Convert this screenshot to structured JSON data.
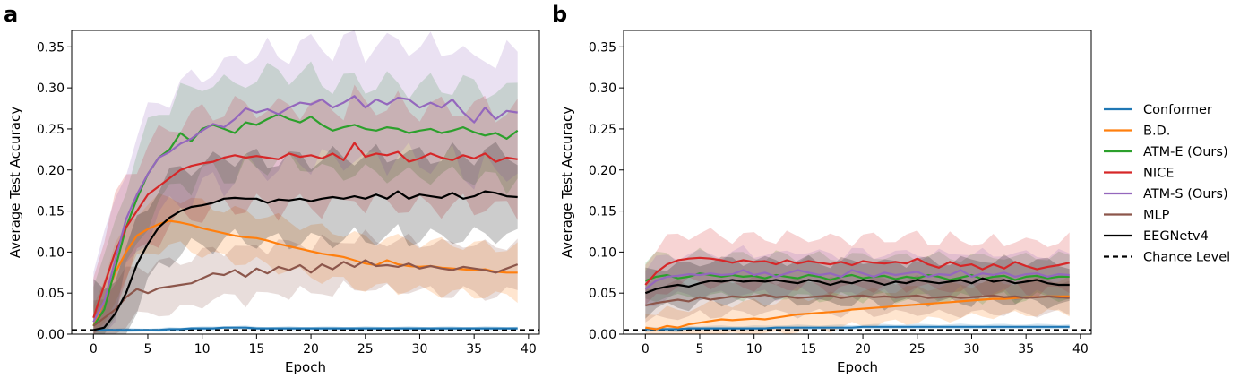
{
  "colors": {
    "Conformer": "#1f77b4",
    "B.D.": "#ff7f0e",
    "ATM-E (Ours)": "#2ca02c",
    "NICE": "#d62728",
    "ATM-S (Ours)": "#9467bd",
    "MLP": "#8c564b",
    "EEGNetv4": "#000000",
    "Chance Level": "#000000"
  },
  "legend": {
    "entries": [
      {
        "label": "Conformer",
        "style": "solid"
      },
      {
        "label": "B.D.",
        "style": "solid"
      },
      {
        "label": "ATM-E (Ours)",
        "style": "solid"
      },
      {
        "label": "NICE",
        "style": "solid"
      },
      {
        "label": "ATM-S (Ours)",
        "style": "solid"
      },
      {
        "label": "MLP",
        "style": "solid"
      },
      {
        "label": "EEGNetv4",
        "style": "solid"
      },
      {
        "label": "Chance Level",
        "style": "dashed"
      }
    ],
    "placement": "right"
  },
  "chart_data": [
    {
      "panel_label": "a",
      "type": "line",
      "xlabel": "Epoch",
      "ylabel": "Average Test Accuracy",
      "xlim": [
        -2,
        41
      ],
      "ylim": [
        0.0,
        0.37
      ],
      "xticks": [
        0,
        5,
        10,
        15,
        20,
        25,
        30,
        35,
        40
      ],
      "yticks": [
        0.0,
        0.05,
        0.1,
        0.15,
        0.2,
        0.25,
        0.3,
        0.35
      ],
      "ytick_labels": [
        "0.00",
        "0.05",
        "0.10",
        "0.15",
        "0.20",
        "0.25",
        "0.30",
        "0.35"
      ],
      "chance_level": 0.005,
      "x_start": 0,
      "series": [
        {
          "name": "Conformer",
          "band": 0.002,
          "values": [
            0.005,
            0.005,
            0.005,
            0.005,
            0.005,
            0.005,
            0.005,
            0.006,
            0.006,
            0.007,
            0.007,
            0.007,
            0.008,
            0.008,
            0.008,
            0.007,
            0.007,
            0.007,
            0.007,
            0.007,
            0.007,
            0.007,
            0.007,
            0.007,
            0.007,
            0.007,
            0.007,
            0.007,
            0.007,
            0.007,
            0.007,
            0.007,
            0.007,
            0.007,
            0.007,
            0.007,
            0.007,
            0.007,
            0.007,
            0.007
          ]
        },
        {
          "name": "B.D.",
          "band": 0.03,
          "values": [
            0.01,
            0.04,
            0.075,
            0.1,
            0.12,
            0.128,
            0.134,
            0.138,
            0.136,
            0.133,
            0.129,
            0.126,
            0.123,
            0.12,
            0.118,
            0.117,
            0.114,
            0.11,
            0.107,
            0.104,
            0.101,
            0.098,
            0.096,
            0.094,
            0.09,
            0.086,
            0.084,
            0.09,
            0.085,
            0.083,
            0.082,
            0.083,
            0.081,
            0.08,
            0.079,
            0.078,
            0.079,
            0.076,
            0.075,
            0.075
          ]
        },
        {
          "name": "ATM-E (Ours)",
          "band": 0.055,
          "values": [
            0.01,
            0.03,
            0.08,
            0.13,
            0.165,
            0.195,
            0.215,
            0.225,
            0.245,
            0.235,
            0.25,
            0.255,
            0.25,
            0.245,
            0.258,
            0.255,
            0.262,
            0.268,
            0.262,
            0.258,
            0.265,
            0.255,
            0.248,
            0.252,
            0.255,
            0.25,
            0.248,
            0.252,
            0.25,
            0.245,
            0.248,
            0.25,
            0.245,
            0.248,
            0.252,
            0.246,
            0.242,
            0.245,
            0.238,
            0.248
          ]
        },
        {
          "name": "NICE",
          "band": 0.06,
          "values": [
            0.02,
            0.06,
            0.1,
            0.13,
            0.15,
            0.17,
            0.18,
            0.19,
            0.2,
            0.205,
            0.208,
            0.21,
            0.215,
            0.218,
            0.215,
            0.217,
            0.215,
            0.213,
            0.22,
            0.216,
            0.218,
            0.214,
            0.22,
            0.212,
            0.233,
            0.216,
            0.22,
            0.218,
            0.222,
            0.21,
            0.214,
            0.22,
            0.215,
            0.212,
            0.218,
            0.214,
            0.22,
            0.21,
            0.215,
            0.213
          ]
        },
        {
          "name": "ATM-S (Ours)",
          "band": 0.07,
          "values": [
            0.015,
            0.04,
            0.09,
            0.14,
            0.17,
            0.195,
            0.215,
            0.222,
            0.232,
            0.238,
            0.248,
            0.256,
            0.252,
            0.262,
            0.275,
            0.27,
            0.274,
            0.268,
            0.276,
            0.282,
            0.28,
            0.286,
            0.276,
            0.282,
            0.29,
            0.276,
            0.286,
            0.28,
            0.288,
            0.286,
            0.276,
            0.282,
            0.276,
            0.286,
            0.27,
            0.258,
            0.276,
            0.262,
            0.272,
            0.27
          ]
        },
        {
          "name": "MLP",
          "band": 0.03,
          "values": [
            0.01,
            0.02,
            0.03,
            0.045,
            0.055,
            0.05,
            0.056,
            0.058,
            0.06,
            0.062,
            0.068,
            0.074,
            0.072,
            0.078,
            0.07,
            0.08,
            0.074,
            0.082,
            0.078,
            0.084,
            0.075,
            0.085,
            0.079,
            0.088,
            0.082,
            0.09,
            0.083,
            0.084,
            0.082,
            0.086,
            0.08,
            0.083,
            0.08,
            0.078,
            0.082,
            0.08,
            0.078,
            0.075,
            0.08,
            0.085
          ]
        },
        {
          "name": "EEGNetv4",
          "band": 0.05,
          "values": [
            0.005,
            0.008,
            0.025,
            0.05,
            0.085,
            0.11,
            0.13,
            0.142,
            0.15,
            0.155,
            0.157,
            0.16,
            0.165,
            0.166,
            0.165,
            0.165,
            0.16,
            0.164,
            0.163,
            0.165,
            0.162,
            0.165,
            0.167,
            0.165,
            0.168,
            0.165,
            0.17,
            0.165,
            0.174,
            0.165,
            0.17,
            0.168,
            0.166,
            0.172,
            0.165,
            0.168,
            0.174,
            0.172,
            0.168,
            0.167
          ]
        }
      ]
    },
    {
      "panel_label": "b",
      "type": "line",
      "xlabel": "Epoch",
      "ylabel": "Average Test Accuracy",
      "xlim": [
        -2,
        41
      ],
      "ylim": [
        0.0,
        0.37
      ],
      "xticks": [
        0,
        5,
        10,
        15,
        20,
        25,
        30,
        35,
        40
      ],
      "yticks": [
        0.0,
        0.05,
        0.1,
        0.15,
        0.2,
        0.25,
        0.3,
        0.35
      ],
      "ytick_labels": [
        "0.00",
        "0.05",
        "0.10",
        "0.15",
        "0.20",
        "0.25",
        "0.30",
        "0.35"
      ],
      "chance_level": 0.005,
      "x_start": 0,
      "series": [
        {
          "name": "Conformer",
          "band": 0.003,
          "values": [
            0.006,
            0.006,
            0.006,
            0.006,
            0.007,
            0.007,
            0.007,
            0.007,
            0.007,
            0.007,
            0.007,
            0.007,
            0.008,
            0.008,
            0.008,
            0.008,
            0.008,
            0.008,
            0.008,
            0.008,
            0.009,
            0.009,
            0.009,
            0.009,
            0.009,
            0.009,
            0.009,
            0.009,
            0.009,
            0.009,
            0.009,
            0.009,
            0.009,
            0.009,
            0.009,
            0.009,
            0.009,
            0.009,
            0.009,
            0.009
          ]
        },
        {
          "name": "B.D.",
          "band": 0.02,
          "values": [
            0.008,
            0.006,
            0.01,
            0.008,
            0.012,
            0.014,
            0.016,
            0.018,
            0.017,
            0.018,
            0.019,
            0.018,
            0.02,
            0.022,
            0.024,
            0.025,
            0.026,
            0.027,
            0.028,
            0.03,
            0.031,
            0.032,
            0.033,
            0.034,
            0.035,
            0.036,
            0.037,
            0.038,
            0.039,
            0.04,
            0.041,
            0.042,
            0.043,
            0.043,
            0.044,
            0.045,
            0.045,
            0.046,
            0.046,
            0.046
          ]
        },
        {
          "name": "ATM-E (Ours)",
          "band": 0.025,
          "values": [
            0.065,
            0.07,
            0.072,
            0.068,
            0.07,
            0.074,
            0.072,
            0.07,
            0.072,
            0.07,
            0.071,
            0.068,
            0.072,
            0.07,
            0.068,
            0.072,
            0.07,
            0.066,
            0.07,
            0.072,
            0.068,
            0.07,
            0.071,
            0.067,
            0.07,
            0.068,
            0.072,
            0.07,
            0.066,
            0.069,
            0.072,
            0.067,
            0.07,
            0.071,
            0.066,
            0.07,
            0.071,
            0.068,
            0.07,
            0.07
          ]
        },
        {
          "name": "NICE",
          "band": 0.03,
          "values": [
            0.06,
            0.075,
            0.085,
            0.09,
            0.092,
            0.093,
            0.092,
            0.09,
            0.087,
            0.09,
            0.088,
            0.089,
            0.085,
            0.09,
            0.086,
            0.089,
            0.087,
            0.085,
            0.088,
            0.084,
            0.089,
            0.087,
            0.086,
            0.088,
            0.086,
            0.092,
            0.085,
            0.081,
            0.088,
            0.083,
            0.085,
            0.079,
            0.085,
            0.08,
            0.088,
            0.083,
            0.079,
            0.082,
            0.084,
            0.087
          ]
        },
        {
          "name": "ATM-S (Ours)",
          "band": 0.025,
          "values": [
            0.055,
            0.065,
            0.07,
            0.071,
            0.073,
            0.072,
            0.074,
            0.072,
            0.073,
            0.078,
            0.072,
            0.075,
            0.07,
            0.074,
            0.078,
            0.075,
            0.072,
            0.074,
            0.07,
            0.078,
            0.074,
            0.07,
            0.075,
            0.072,
            0.074,
            0.076,
            0.07,
            0.073,
            0.072,
            0.078,
            0.07,
            0.074,
            0.072,
            0.075,
            0.07,
            0.073,
            0.074,
            0.07,
            0.073,
            0.072
          ]
        },
        {
          "name": "MLP",
          "band": 0.02,
          "values": [
            0.035,
            0.038,
            0.04,
            0.042,
            0.04,
            0.045,
            0.042,
            0.044,
            0.046,
            0.045,
            0.046,
            0.048,
            0.045,
            0.046,
            0.044,
            0.045,
            0.046,
            0.047,
            0.044,
            0.046,
            0.047,
            0.045,
            0.046,
            0.045,
            0.046,
            0.047,
            0.044,
            0.045,
            0.046,
            0.044,
            0.045,
            0.046,
            0.047,
            0.045,
            0.046,
            0.044,
            0.045,
            0.046,
            0.045,
            0.044
          ]
        },
        {
          "name": "EEGNetv4",
          "band": 0.025,
          "values": [
            0.05,
            0.055,
            0.058,
            0.06,
            0.058,
            0.062,
            0.065,
            0.064,
            0.066,
            0.064,
            0.065,
            0.064,
            0.066,
            0.064,
            0.062,
            0.066,
            0.064,
            0.06,
            0.064,
            0.062,
            0.066,
            0.064,
            0.06,
            0.064,
            0.062,
            0.066,
            0.064,
            0.062,
            0.064,
            0.066,
            0.062,
            0.068,
            0.064,
            0.066,
            0.062,
            0.064,
            0.066,
            0.062,
            0.06,
            0.06
          ]
        }
      ]
    }
  ]
}
